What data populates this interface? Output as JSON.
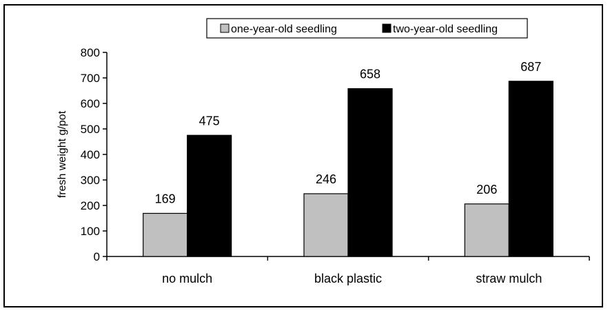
{
  "chart_data": {
    "type": "bar",
    "title": "",
    "xlabel": "",
    "ylabel": "fresh weight g/pot",
    "categories": [
      "no mulch",
      "black plastic",
      "straw mulch"
    ],
    "series": [
      {
        "name": "one-year-old seedling",
        "values": [
          169,
          246,
          206
        ],
        "color": "#c0c0c0"
      },
      {
        "name": "two-year-old seedling",
        "values": [
          475,
          658,
          687
        ],
        "color": "#000000"
      }
    ],
    "ylim": [
      0,
      800
    ],
    "yticks": [
      0,
      100,
      200,
      300,
      400,
      500,
      600,
      700,
      800
    ],
    "grid": false,
    "legend_position": "top-right",
    "data_labels": true
  }
}
